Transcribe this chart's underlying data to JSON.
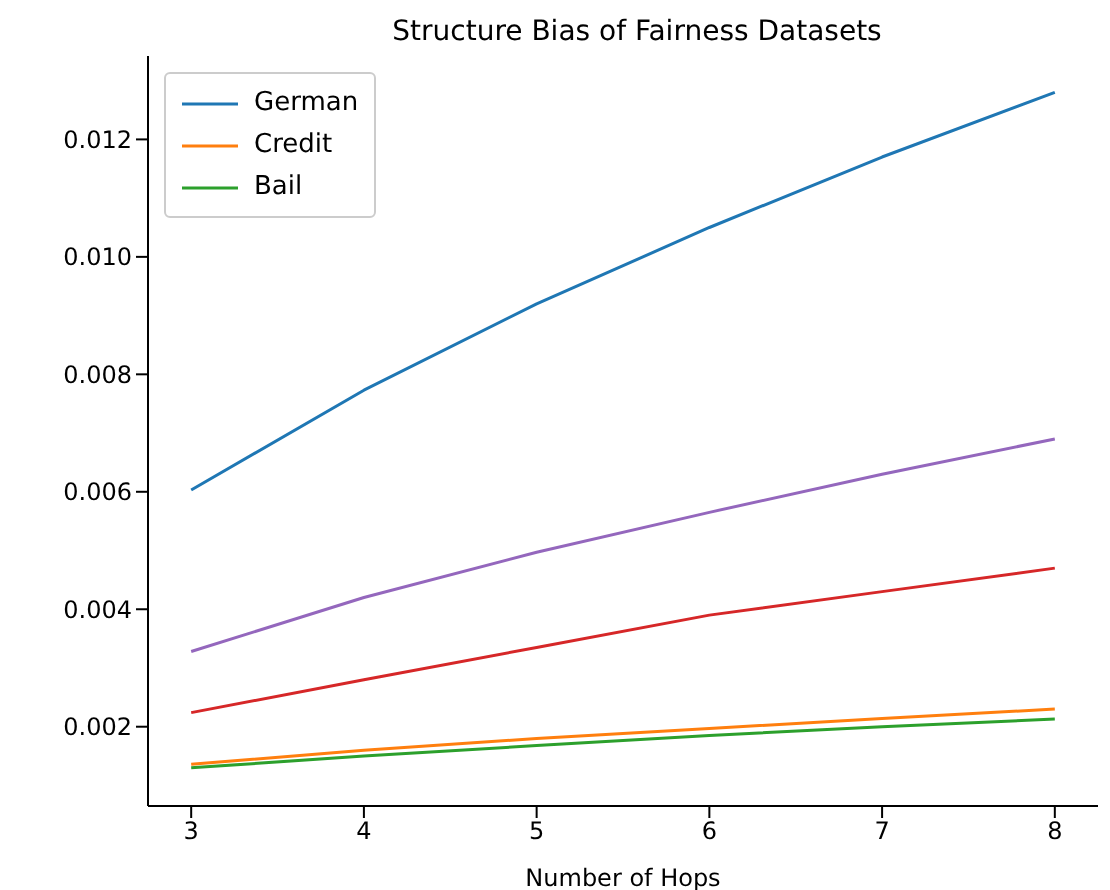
{
  "chart_data": {
    "type": "line",
    "title": "Structure Bias of Fairness Datasets",
    "xlabel": "Number of Hops",
    "x": [
      3,
      4,
      5,
      6,
      7,
      8
    ],
    "series": [
      {
        "name": "German",
        "color": "#1f77b4",
        "values": [
          0.00603,
          0.00773,
          0.0092,
          0.0105,
          0.0117,
          0.0128
        ]
      },
      {
        "name": "Credit",
        "color": "#ff7f0e",
        "values": [
          0.00136,
          0.0016,
          0.0018,
          0.00197,
          0.00214,
          0.0023
        ]
      },
      {
        "name": "Bail",
        "color": "#2ca02c",
        "values": [
          0.0013,
          0.0015,
          0.00168,
          0.00185,
          0.002,
          0.00213
        ]
      },
      {
        "color": "#d62728",
        "values": [
          0.00224,
          0.0028,
          0.00335,
          0.0039,
          0.0043,
          0.0047
        ]
      },
      {
        "color": "#9467bd",
        "values": [
          0.00328,
          0.0042,
          0.00497,
          0.00565,
          0.0063,
          0.0069
        ]
      }
    ],
    "xlim": [
      2.75,
      8.25
    ],
    "xticks": [
      3,
      4,
      5,
      6,
      7,
      8
    ],
    "ylim": [
      0.00065,
      0.01342
    ],
    "yticks": [
      {
        "value": 0.002,
        "label": "0.002"
      },
      {
        "value": 0.004,
        "label": "0.004"
      },
      {
        "value": 0.006,
        "label": "0.006"
      },
      {
        "value": 0.008,
        "label": "0.008"
      },
      {
        "value": 0.01,
        "label": "0.010"
      },
      {
        "value": 0.012,
        "label": "0.012"
      }
    ],
    "legend": "top left",
    "grid": false,
    "marker": "none",
    "line_style": "solid"
  }
}
